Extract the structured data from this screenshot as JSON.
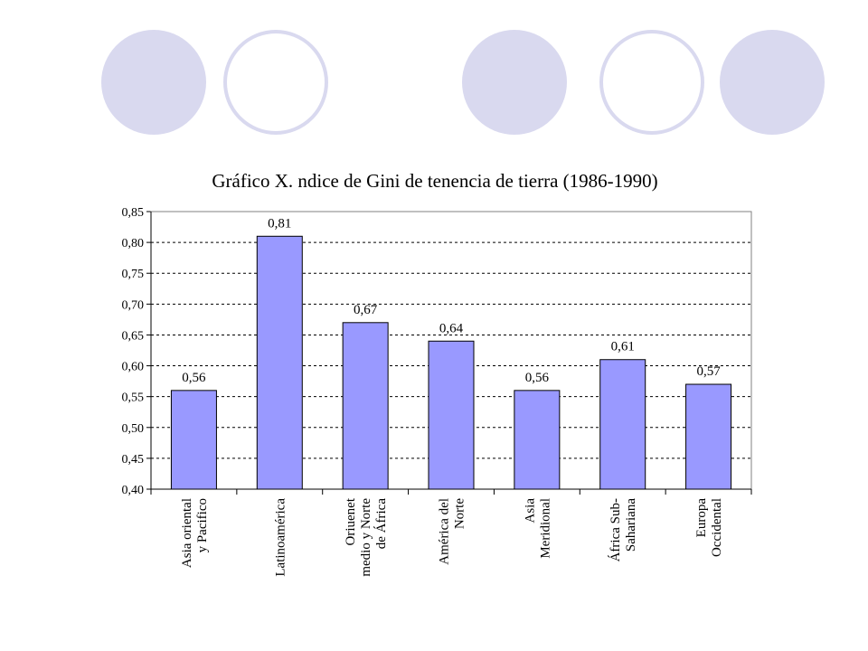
{
  "theme": {
    "circle_color": "#d9d9ef",
    "bar_color": "#9999ff",
    "bar_border": "#000000"
  },
  "chart_data": {
    "type": "bar",
    "title": "Gráfico X. ndice de Gini de tenencia de tierra (1986-1990)",
    "categories": [
      [
        "Asia oriental",
        "y Pacifico"
      ],
      [
        "Latinoamérica"
      ],
      [
        "Oriuenet",
        "medio y Norte",
        "de África"
      ],
      [
        "América del",
        "Norte"
      ],
      [
        "Asia",
        "Meridional"
      ],
      [
        "África Sub-",
        "Sahariana"
      ],
      [
        "Europa",
        "Occidental"
      ]
    ],
    "values": [
      0.56,
      0.81,
      0.67,
      0.64,
      0.56,
      0.61,
      0.57
    ],
    "value_labels": [
      "0,56",
      "0,81",
      "0,67",
      "0,64",
      "0,56",
      "0,61",
      "0,57"
    ],
    "ylim": [
      0.4,
      0.85
    ],
    "yticks": [
      0.4,
      0.45,
      0.5,
      0.55,
      0.6,
      0.65,
      0.7,
      0.75,
      0.8,
      0.85
    ],
    "ytick_labels": [
      "0,40",
      "0,45",
      "0,50",
      "0,55",
      "0,60",
      "0,65",
      "0,70",
      "0,75",
      "0,80",
      "0,85"
    ],
    "grid": "dashed horizontal",
    "legend": "none"
  }
}
